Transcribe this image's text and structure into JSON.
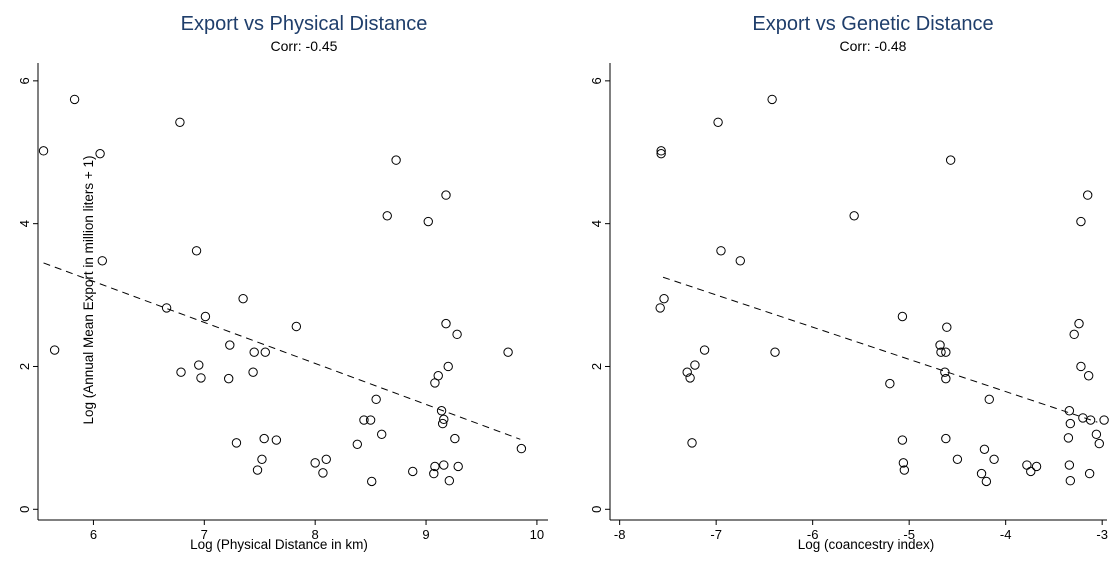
{
  "chart_data": [
    {
      "type": "scatter",
      "title": "Export vs Physical Distance",
      "subtitle": "Corr: -0.45",
      "xlabel": "Log (Physical Distance in km)",
      "ylabel": "Log (Annual Mean Export in million liters + 1)",
      "xlim": [
        5.5,
        10.1
      ],
      "ylim": [
        -0.15,
        6.25
      ],
      "xticks": [
        6,
        7,
        8,
        9,
        10
      ],
      "yticks": [
        0,
        2,
        4,
        6
      ],
      "fit_line": {
        "x": [
          5.55,
          9.85
        ],
        "y": [
          3.45,
          0.98
        ]
      },
      "points": [
        [
          5.55,
          5.02
        ],
        [
          5.83,
          5.74
        ],
        [
          5.65,
          2.23
        ],
        [
          6.06,
          4.98
        ],
        [
          6.08,
          3.48
        ],
        [
          6.66,
          2.82
        ],
        [
          6.78,
          5.42
        ],
        [
          6.93,
          3.62
        ],
        [
          6.79,
          1.92
        ],
        [
          6.95,
          2.02
        ],
        [
          6.97,
          1.84
        ],
        [
          7.01,
          2.7
        ],
        [
          7.22,
          1.83
        ],
        [
          7.23,
          2.3
        ],
        [
          7.35,
          2.95
        ],
        [
          7.29,
          0.93
        ],
        [
          7.45,
          2.2
        ],
        [
          7.44,
          1.92
        ],
        [
          7.55,
          2.2
        ],
        [
          7.48,
          0.55
        ],
        [
          7.52,
          0.7
        ],
        [
          7.54,
          0.99
        ],
        [
          7.65,
          0.97
        ],
        [
          7.83,
          2.56
        ],
        [
          8.0,
          0.65
        ],
        [
          8.07,
          0.51
        ],
        [
          8.1,
          0.7
        ],
        [
          8.38,
          0.91
        ],
        [
          8.44,
          1.25
        ],
        [
          8.5,
          1.25
        ],
        [
          8.51,
          0.39
        ],
        [
          8.55,
          1.54
        ],
        [
          8.6,
          1.05
        ],
        [
          8.65,
          4.11
        ],
        [
          8.73,
          4.89
        ],
        [
          8.88,
          0.53
        ],
        [
          9.02,
          4.03
        ],
        [
          9.07,
          0.5
        ],
        [
          9.08,
          0.6
        ],
        [
          9.08,
          1.77
        ],
        [
          9.11,
          1.87
        ],
        [
          9.14,
          1.38
        ],
        [
          9.15,
          1.2
        ],
        [
          9.16,
          1.26
        ],
        [
          9.16,
          0.62
        ],
        [
          9.18,
          4.4
        ],
        [
          9.18,
          2.6
        ],
        [
          9.2,
          2.0
        ],
        [
          9.21,
          0.4
        ],
        [
          9.26,
          0.99
        ],
        [
          9.28,
          2.45
        ],
        [
          9.29,
          0.6
        ],
        [
          9.74,
          2.2
        ],
        [
          9.86,
          0.85
        ]
      ]
    },
    {
      "type": "scatter",
      "title": "Export vs Genetic Distance",
      "subtitle": "Corr: -0.48",
      "xlabel": "Log (coancestry index)",
      "ylabel": "",
      "xlim": [
        -8.1,
        -2.95
      ],
      "ylim": [
        -0.15,
        6.25
      ],
      "xticks": [
        -8,
        -7,
        -6,
        -5,
        -4,
        -3
      ],
      "yticks": [
        0,
        2,
        4,
        6
      ],
      "fit_line": {
        "x": [
          -7.55,
          -3.05
        ],
        "y": [
          3.25,
          1.22
        ]
      },
      "points": [
        [
          -7.57,
          5.02
        ],
        [
          -7.57,
          4.98
        ],
        [
          -7.58,
          2.82
        ],
        [
          -7.54,
          2.95
        ],
        [
          -7.3,
          1.92
        ],
        [
          -7.27,
          1.84
        ],
        [
          -7.25,
          0.93
        ],
        [
          -7.22,
          2.02
        ],
        [
          -7.12,
          2.23
        ],
        [
          -6.98,
          5.42
        ],
        [
          -6.95,
          3.62
        ],
        [
          -6.75,
          3.48
        ],
        [
          -6.42,
          5.74
        ],
        [
          -6.39,
          2.2
        ],
        [
          -5.57,
          4.11
        ],
        [
          -5.2,
          1.76
        ],
        [
          -5.07,
          2.7
        ],
        [
          -5.07,
          0.97
        ],
        [
          -5.06,
          0.65
        ],
        [
          -5.05,
          0.55
        ],
        [
          -4.68,
          2.3
        ],
        [
          -4.67,
          2.2
        ],
        [
          -4.62,
          2.2
        ],
        [
          -4.63,
          1.92
        ],
        [
          -4.62,
          1.83
        ],
        [
          -4.61,
          2.55
        ],
        [
          -4.62,
          0.99
        ],
        [
          -4.57,
          4.89
        ],
        [
          -4.5,
          0.7
        ],
        [
          -4.25,
          0.5
        ],
        [
          -4.22,
          0.84
        ],
        [
          -4.2,
          0.39
        ],
        [
          -4.17,
          1.54
        ],
        [
          -4.12,
          0.7
        ],
        [
          -3.78,
          0.62
        ],
        [
          -3.74,
          0.53
        ],
        [
          -3.68,
          0.6
        ],
        [
          -3.34,
          1.38
        ],
        [
          -3.35,
          1.0
        ],
        [
          -3.34,
          0.62
        ],
        [
          -3.33,
          1.2
        ],
        [
          -3.33,
          0.4
        ],
        [
          -3.29,
          2.45
        ],
        [
          -3.24,
          2.6
        ],
        [
          -3.22,
          4.03
        ],
        [
          -3.22,
          2.0
        ],
        [
          -3.2,
          1.28
        ],
        [
          -3.15,
          4.4
        ],
        [
          -3.14,
          1.87
        ],
        [
          -3.12,
          1.25
        ],
        [
          -3.13,
          0.5
        ],
        [
          -3.06,
          1.05
        ],
        [
          -3.03,
          0.92
        ],
        [
          -2.98,
          1.25
        ]
      ]
    }
  ]
}
